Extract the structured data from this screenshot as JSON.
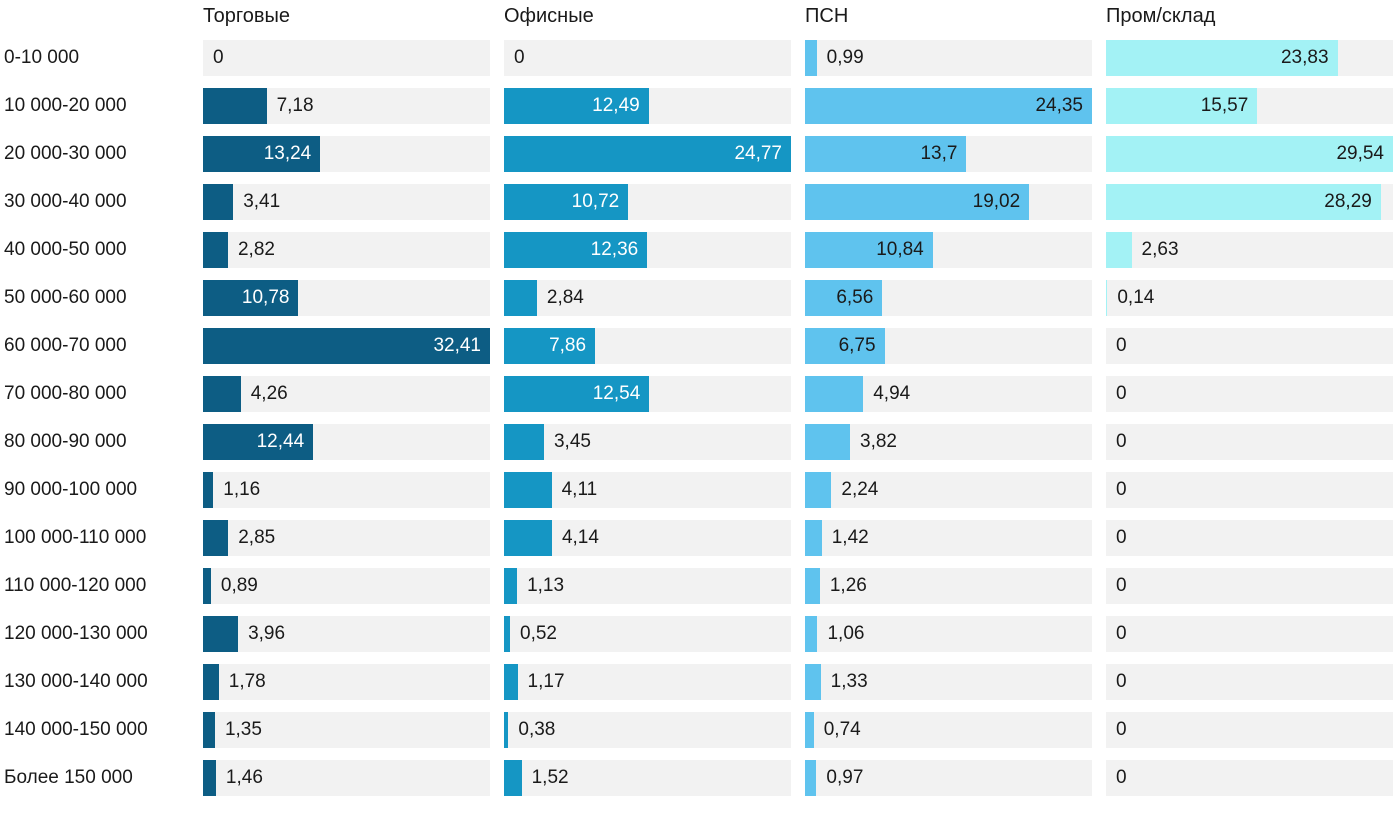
{
  "page": {
    "background": "#ffffff",
    "text_color": "#1a1a1a",
    "track_color": "#f2f2f2"
  },
  "chart_data": {
    "type": "bar",
    "orientation": "horizontal",
    "unit": "%",
    "scaling": "each column scaled to its own max value = full track width",
    "grid": false,
    "legend_position": "column-headers-top",
    "categories": [
      "0-10 000",
      "10 000-20 000",
      "20 000-30 000",
      "30 000-40 000",
      "40 000-50 000",
      "50 000-60 000",
      "60 000-70 000",
      "70 000-80 000",
      "80 000-90 000",
      "90 000-100 000",
      "100 000-110 000",
      "110 000-120 000",
      "120 000-130 000",
      "130 000-140 000",
      "140 000-150 000",
      "Более 150 000"
    ],
    "series": [
      {
        "name": "Торговые",
        "color": "#0d5d84",
        "inside_label_color": "#ffffff",
        "values": [
          0,
          7.18,
          13.24,
          3.41,
          2.82,
          10.78,
          32.41,
          4.26,
          12.44,
          1.16,
          2.85,
          0.89,
          3.96,
          1.78,
          1.35,
          1.46
        ],
        "labels": [
          "0",
          "7,18",
          "13,24",
          "3,41",
          "2,82",
          "10,78",
          "32,41",
          "4,26",
          "12,44",
          "1,16",
          "2,85",
          "0,89",
          "3,96",
          "1,78",
          "1,35",
          "1,46"
        ]
      },
      {
        "name": "Офисные",
        "color": "#1596c4",
        "inside_label_color": "#ffffff",
        "values": [
          0,
          12.49,
          24.77,
          10.72,
          12.36,
          2.84,
          7.86,
          12.54,
          3.45,
          4.11,
          4.14,
          1.13,
          0.52,
          1.17,
          0.38,
          1.52
        ],
        "labels": [
          "0",
          "12,49",
          "24,77",
          "10,72",
          "12,36",
          "2,84",
          "7,86",
          "12,54",
          "3,45",
          "4,11",
          "4,14",
          "1,13",
          "0,52",
          "1,17",
          "0,38",
          "1,52"
        ]
      },
      {
        "name": "ПСН",
        "color": "#5fc3ee",
        "inside_label_color": "#1a1a1a",
        "values": [
          0.99,
          24.35,
          13.7,
          19.02,
          10.84,
          6.56,
          6.75,
          4.94,
          3.82,
          2.24,
          1.42,
          1.26,
          1.06,
          1.33,
          0.74,
          0.97
        ],
        "labels": [
          "0,99",
          "24,35",
          "13,7",
          "19,02",
          "10,84",
          "6,56",
          "6,75",
          "4,94",
          "3,82",
          "2,24",
          "1,42",
          "1,26",
          "1,06",
          "1,33",
          "0,74",
          "0,97"
        ]
      },
      {
        "name": "Пром/склад",
        "color": "#a3f2f5",
        "inside_label_color": "#1a1a1a",
        "values": [
          23.83,
          15.57,
          29.54,
          28.29,
          2.63,
          0.14,
          0,
          0,
          0,
          0,
          0,
          0,
          0,
          0,
          0,
          0
        ],
        "labels": [
          "23,83",
          "15,57",
          "29,54",
          "28,29",
          "2,63",
          "0,14",
          "0",
          "0",
          "0",
          "0",
          "0",
          "0",
          "0",
          "0",
          "0",
          "0"
        ]
      }
    ]
  }
}
